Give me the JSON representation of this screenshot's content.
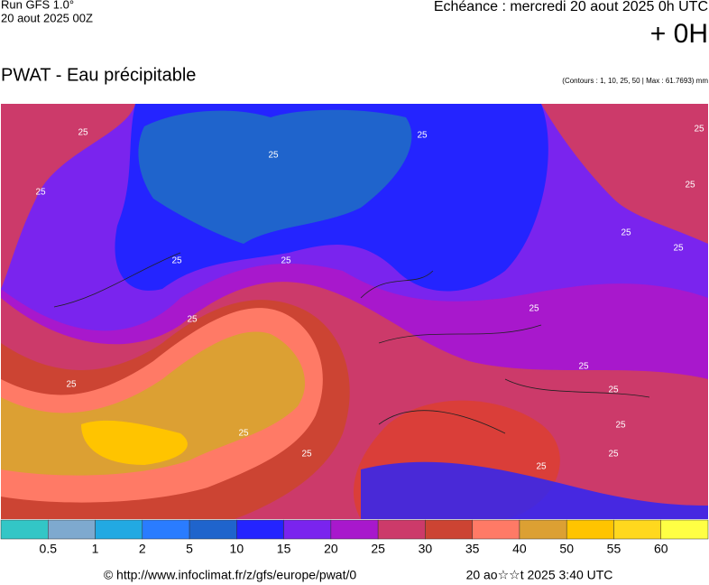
{
  "header": {
    "run": "Run GFS 1.0°",
    "run_date": "20 aout 2025 00Z",
    "echeance": "Echéance : mercredi 20 aout 2025 0h UTC",
    "offset": "+ 0H",
    "title": "PWAT - Eau précipitable",
    "contours_note": "(Contours : 1, 10, 25, 50 | Max : 61.7693) mm"
  },
  "map": {
    "contour_label": "25"
  },
  "colorbar": {
    "colors": [
      "#33c6c6",
      "#7ea9cf",
      "#22a9e2",
      "#2a7cff",
      "#1f64cc",
      "#2424ff",
      "#7a24ee",
      "#a818cc",
      "#cc3a6a",
      "#cc4433",
      "#ff7a66",
      "#dca033",
      "#ffc400",
      "#ffd81e",
      "#ffff44"
    ],
    "labels": [
      0.5,
      1,
      2,
      5,
      10,
      15,
      20,
      25,
      30,
      35,
      40,
      50,
      55,
      60
    ]
  },
  "footer": {
    "source": "© http://www.infoclimat.fr/z/gfs/europe/pwat/0",
    "generated": "20 ao☆☆t 2025  3:40 UTC"
  }
}
